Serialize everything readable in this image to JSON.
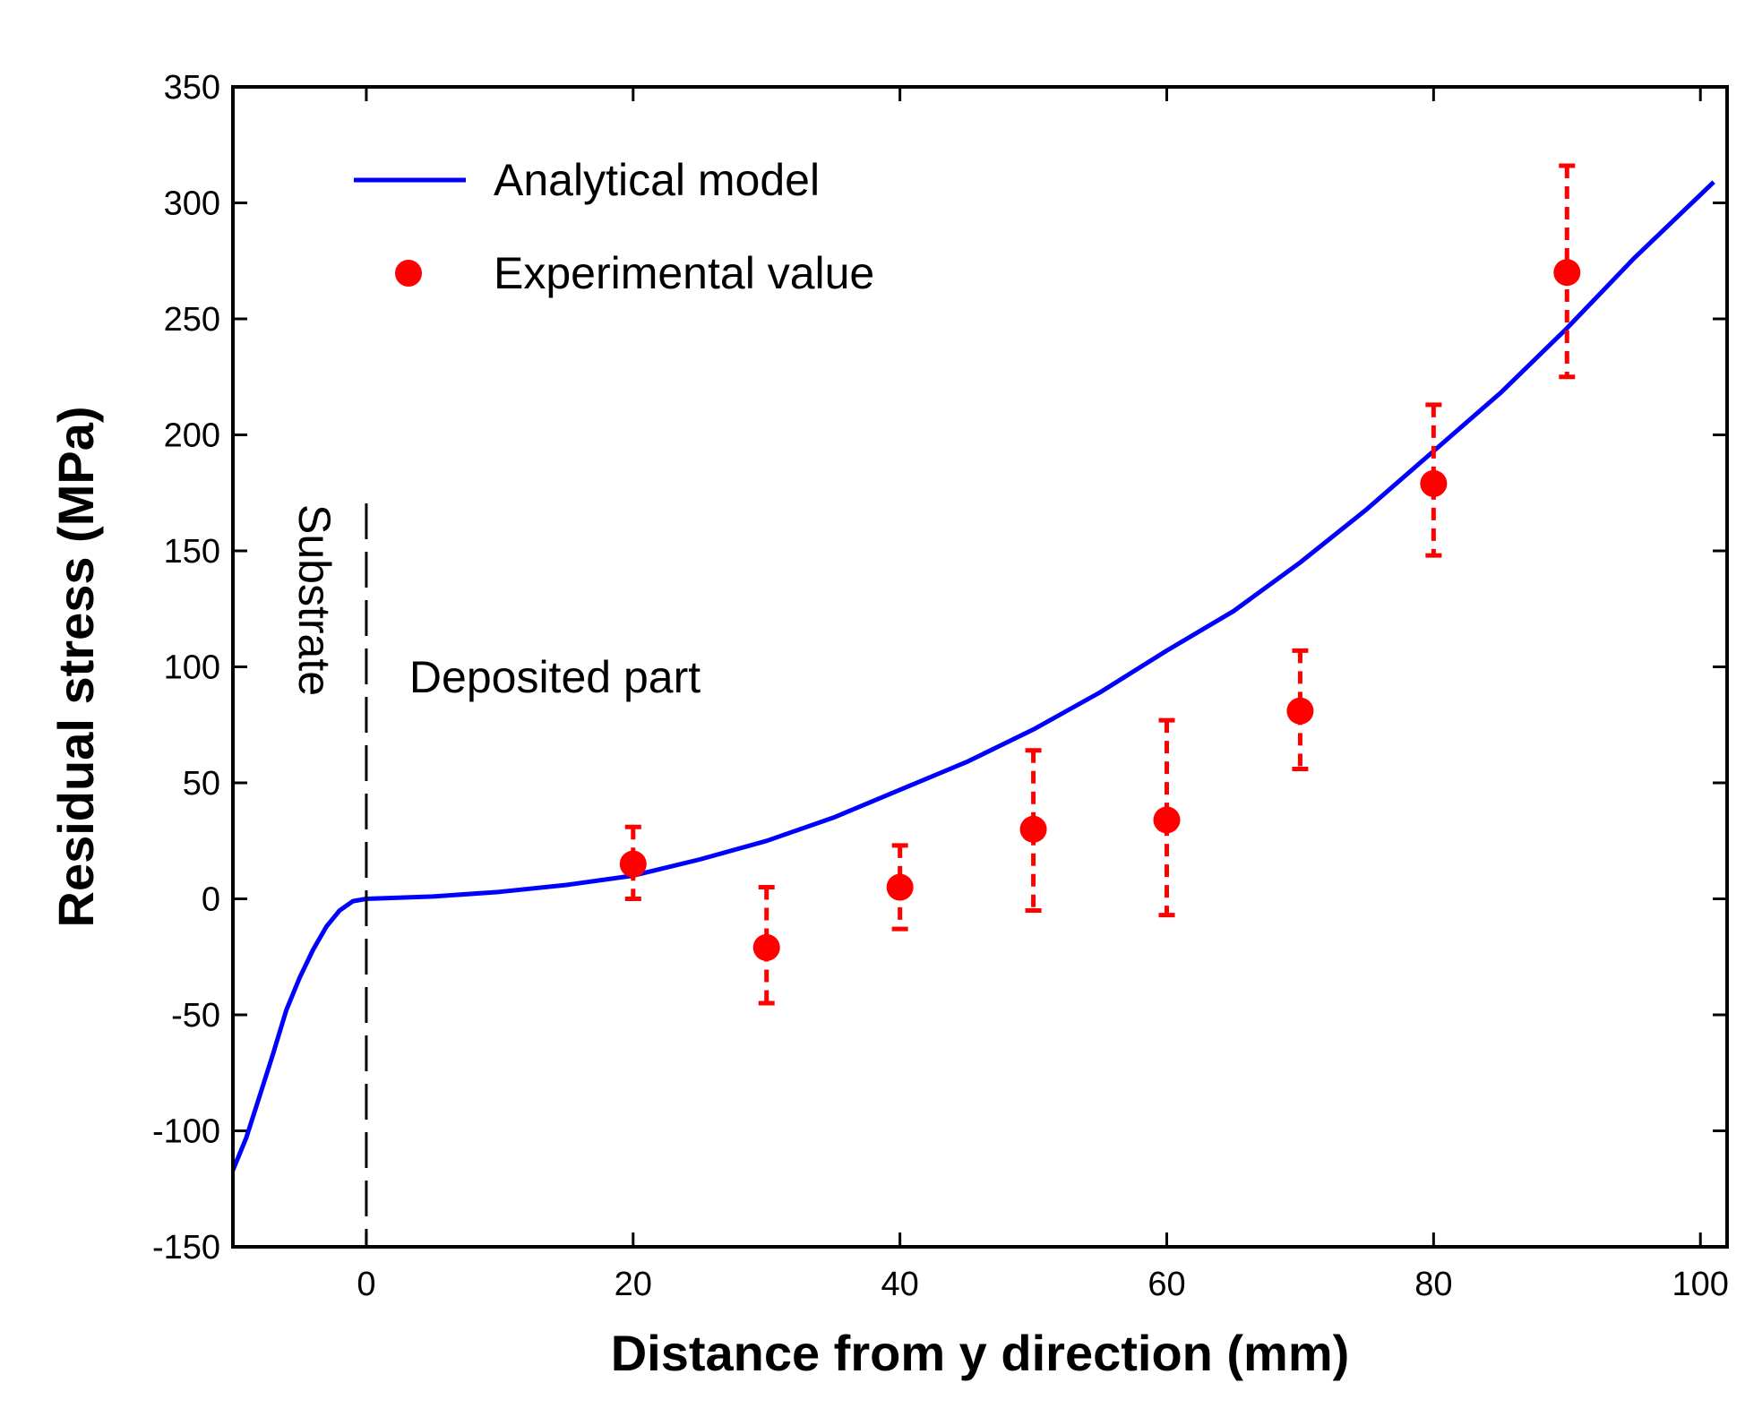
{
  "chart_data": {
    "type": "line",
    "xlabel": "Distance from y direction (mm)",
    "ylabel": "Residual stress (MPa)",
    "xlim": [
      -10,
      102
    ],
    "ylim": [
      -150,
      350
    ],
    "xticks": [
      0,
      20,
      40,
      60,
      80,
      100
    ],
    "yticks": [
      -150,
      -100,
      -50,
      0,
      50,
      100,
      150,
      200,
      250,
      300,
      350
    ],
    "grid": false,
    "legend_position": "top-left",
    "series": [
      {
        "name": "Analytical model",
        "kind": "line",
        "color": "#0000ff",
        "points": [
          [
            -10,
            -117
          ],
          [
            -9,
            -103
          ],
          [
            -8,
            -85
          ],
          [
            -7,
            -67
          ],
          [
            -6,
            -48
          ],
          [
            -5,
            -34
          ],
          [
            -4,
            -22
          ],
          [
            -3,
            -12
          ],
          [
            -2,
            -5
          ],
          [
            -1,
            -1
          ],
          [
            0,
            0
          ],
          [
            5,
            1
          ],
          [
            10,
            3
          ],
          [
            15,
            6
          ],
          [
            20,
            10
          ],
          [
            25,
            17
          ],
          [
            30,
            25
          ],
          [
            35,
            35
          ],
          [
            40,
            47
          ],
          [
            45,
            59
          ],
          [
            50,
            73
          ],
          [
            55,
            89
          ],
          [
            60,
            107
          ],
          [
            65,
            124
          ],
          [
            70,
            145
          ],
          [
            75,
            168
          ],
          [
            80,
            193
          ],
          [
            85,
            218
          ],
          [
            90,
            246
          ],
          [
            95,
            276
          ],
          [
            101,
            309
          ]
        ]
      },
      {
        "name": "Experimental value",
        "kind": "scatter",
        "color": "#ff0000",
        "x": [
          20,
          30,
          40,
          50,
          60,
          70,
          80,
          90
        ],
        "y": [
          15,
          -21,
          5,
          30,
          34,
          81,
          179,
          270
        ],
        "err_low": [
          0,
          -45,
          -13,
          -5,
          -7,
          56,
          148,
          225
        ],
        "err_high": [
          31,
          5,
          23,
          64,
          77,
          107,
          213,
          316
        ]
      }
    ],
    "annotations": {
      "divider_x": 0,
      "substrate_label": "Substrate",
      "deposited_label": "Deposited part"
    }
  }
}
